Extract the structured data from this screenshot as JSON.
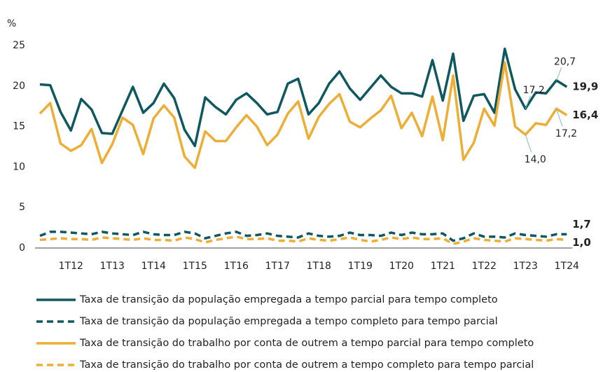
{
  "chart_data": {
    "type": "line",
    "y_axis_label": "%",
    "categories": [
      null,
      null,
      null,
      "1T12",
      null,
      null,
      null,
      "1T13",
      null,
      null,
      null,
      "1T14",
      null,
      null,
      null,
      "1T15",
      null,
      null,
      null,
      "1T16",
      null,
      null,
      null,
      "1T17",
      null,
      null,
      null,
      "1T18",
      null,
      null,
      null,
      "1T19",
      null,
      null,
      null,
      "1T20",
      null,
      null,
      null,
      "1T21",
      null,
      null,
      null,
      "1T22",
      null,
      null,
      null,
      "1T23",
      null,
      null,
      null,
      "1T24"
    ],
    "ylim": [
      0,
      25
    ],
    "yticks": [
      0,
      5,
      10,
      15,
      20,
      25
    ],
    "grid": false,
    "series": [
      {
        "name": "Taxa de transição da população empregada a tempo parcial para tempo completo",
        "color": "#0f5860",
        "dashed": false,
        "values": [
          20.2,
          20.1,
          16.8,
          14.5,
          18.4,
          17.1,
          14.2,
          14.1,
          17.0,
          19.9,
          16.7,
          17.9,
          20.3,
          18.5,
          14.6,
          12.6,
          18.6,
          17.4,
          16.5,
          18.3,
          19.1,
          17.9,
          16.5,
          16.8,
          20.3,
          20.9,
          16.5,
          17.9,
          20.3,
          21.8,
          19.7,
          18.3,
          19.8,
          21.3,
          19.9,
          19.1,
          19.1,
          18.7,
          23.2,
          18.2,
          24.0,
          15.7,
          18.8,
          19.0,
          16.7,
          24.6,
          19.6,
          17.2,
          19.2,
          19.1,
          20.7,
          19.9
        ],
        "value_labels": [
          null,
          null,
          null,
          null,
          null,
          null,
          null,
          null,
          null,
          null,
          null,
          null,
          null,
          null,
          null,
          null,
          null,
          null,
          null,
          null,
          null,
          null,
          null,
          null,
          null,
          null,
          null,
          null,
          null,
          null,
          null,
          null,
          null,
          null,
          null,
          null,
          null,
          null,
          null,
          null,
          null,
          null,
          null,
          null,
          null,
          null,
          null,
          "17,2",
          null,
          null,
          "20,7",
          "19,9"
        ]
      },
      {
        "name": "Taxa de transição da população empregada a tempo completo para tempo parcial",
        "color": "#0f5860",
        "dashed": true,
        "values": [
          1.5,
          2.0,
          2.0,
          1.9,
          1.8,
          1.7,
          2.0,
          1.8,
          1.7,
          1.6,
          2.0,
          1.7,
          1.6,
          1.6,
          2.0,
          1.8,
          1.2,
          1.5,
          1.8,
          2.0,
          1.5,
          1.6,
          1.8,
          1.5,
          1.4,
          1.3,
          1.8,
          1.5,
          1.4,
          1.5,
          1.9,
          1.6,
          1.6,
          1.5,
          1.9,
          1.6,
          1.9,
          1.7,
          1.7,
          1.8,
          0.9,
          1.2,
          1.8,
          1.4,
          1.4,
          1.3,
          1.8,
          1.6,
          1.5,
          1.4,
          1.7,
          1.7
        ],
        "value_labels": [
          null,
          null,
          null,
          null,
          null,
          null,
          null,
          null,
          null,
          null,
          null,
          null,
          null,
          null,
          null,
          null,
          null,
          null,
          null,
          null,
          null,
          null,
          null,
          null,
          null,
          null,
          null,
          null,
          null,
          null,
          null,
          null,
          null,
          null,
          null,
          null,
          null,
          null,
          null,
          null,
          null,
          null,
          null,
          null,
          null,
          null,
          null,
          null,
          null,
          null,
          null,
          "1,7"
        ]
      },
      {
        "name": "Taxa de transição do trabalho por conta de outrem a tempo parcial para tempo completo",
        "color": "#eeae35",
        "dashed": false,
        "values": [
          16.6,
          17.9,
          12.9,
          12.0,
          12.7,
          14.7,
          10.5,
          12.8,
          16.1,
          15.2,
          11.6,
          16.0,
          17.6,
          16.1,
          11.3,
          9.9,
          14.4,
          13.2,
          13.2,
          14.9,
          16.4,
          15.0,
          12.7,
          14.0,
          16.6,
          18.1,
          13.5,
          16.2,
          17.8,
          19.0,
          15.6,
          14.9,
          16.0,
          17.0,
          18.8,
          14.8,
          16.7,
          13.8,
          18.7,
          13.3,
          21.3,
          10.9,
          13.0,
          17.2,
          15.1,
          22.9,
          15.0,
          14.0,
          15.4,
          15.2,
          17.2,
          16.4
        ],
        "value_labels": [
          null,
          null,
          null,
          null,
          null,
          null,
          null,
          null,
          null,
          null,
          null,
          null,
          null,
          null,
          null,
          null,
          null,
          null,
          null,
          null,
          null,
          null,
          null,
          null,
          null,
          null,
          null,
          null,
          null,
          null,
          null,
          null,
          null,
          null,
          null,
          null,
          null,
          null,
          null,
          null,
          null,
          null,
          null,
          null,
          null,
          null,
          null,
          "14,0",
          null,
          null,
          "17,2",
          "16,4"
        ]
      },
      {
        "name": "Taxa de transição do trabalho por conta de outrem a tempo completo para tempo parcial",
        "color": "#eeae35",
        "dashed": true,
        "values": [
          1.0,
          1.1,
          1.2,
          1.1,
          1.1,
          1.0,
          1.3,
          1.2,
          1.1,
          1.0,
          1.2,
          1.0,
          1.0,
          0.9,
          1.3,
          1.1,
          0.7,
          1.0,
          1.2,
          1.4,
          1.1,
          1.1,
          1.2,
          0.9,
          0.9,
          0.8,
          1.2,
          1.0,
          0.9,
          1.1,
          1.3,
          1.0,
          0.8,
          1.0,
          1.3,
          1.1,
          1.3,
          1.1,
          1.1,
          1.2,
          0.5,
          0.8,
          1.2,
          1.0,
          0.9,
          0.8,
          1.2,
          1.1,
          1.0,
          0.9,
          1.1,
          1.0
        ],
        "value_labels": [
          null,
          null,
          null,
          null,
          null,
          null,
          null,
          null,
          null,
          null,
          null,
          null,
          null,
          null,
          null,
          null,
          null,
          null,
          null,
          null,
          null,
          null,
          null,
          null,
          null,
          null,
          null,
          null,
          null,
          null,
          null,
          null,
          null,
          null,
          null,
          null,
          null,
          null,
          null,
          null,
          null,
          null,
          null,
          null,
          null,
          null,
          null,
          null,
          null,
          null,
          null,
          "1,0"
        ]
      }
    ]
  }
}
